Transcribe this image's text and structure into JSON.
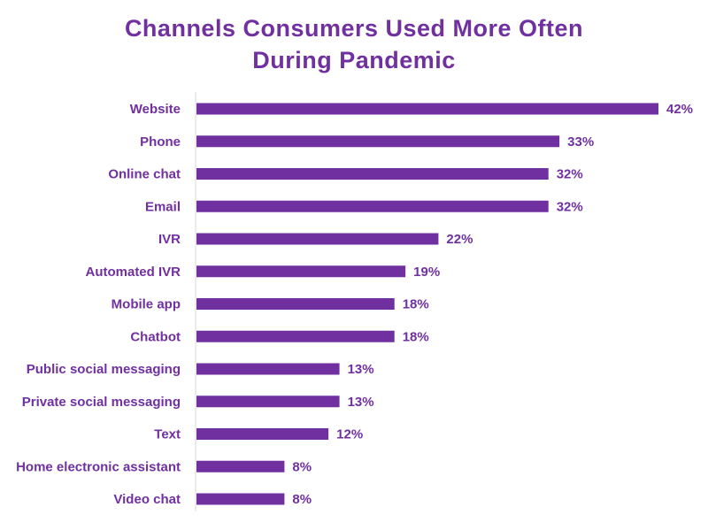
{
  "chart_data": {
    "type": "bar",
    "orientation": "horizontal",
    "title": [
      "Channels Consumers Used More Often",
      "During Pandemic"
    ],
    "categories": [
      "Website",
      "Phone",
      "Online chat",
      "Email",
      "IVR",
      "Automated IVR",
      "Mobile app",
      "Chatbot",
      "Public social messaging",
      "Private social messaging",
      "Text",
      "Home electronic assistant",
      "Video chat"
    ],
    "values": [
      42,
      33,
      32,
      32,
      22,
      19,
      18,
      18,
      13,
      13,
      12,
      8,
      8
    ],
    "value_labels": [
      "42%",
      "33%",
      "32%",
      "32%",
      "22%",
      "19%",
      "18%",
      "18%",
      "13%",
      "13%",
      "12%",
      "8%",
      "8%"
    ],
    "xlim": [
      0,
      42
    ],
    "grid": false,
    "legend": "none",
    "bar_color": "#7030a0",
    "text_color": "#7030a0"
  }
}
